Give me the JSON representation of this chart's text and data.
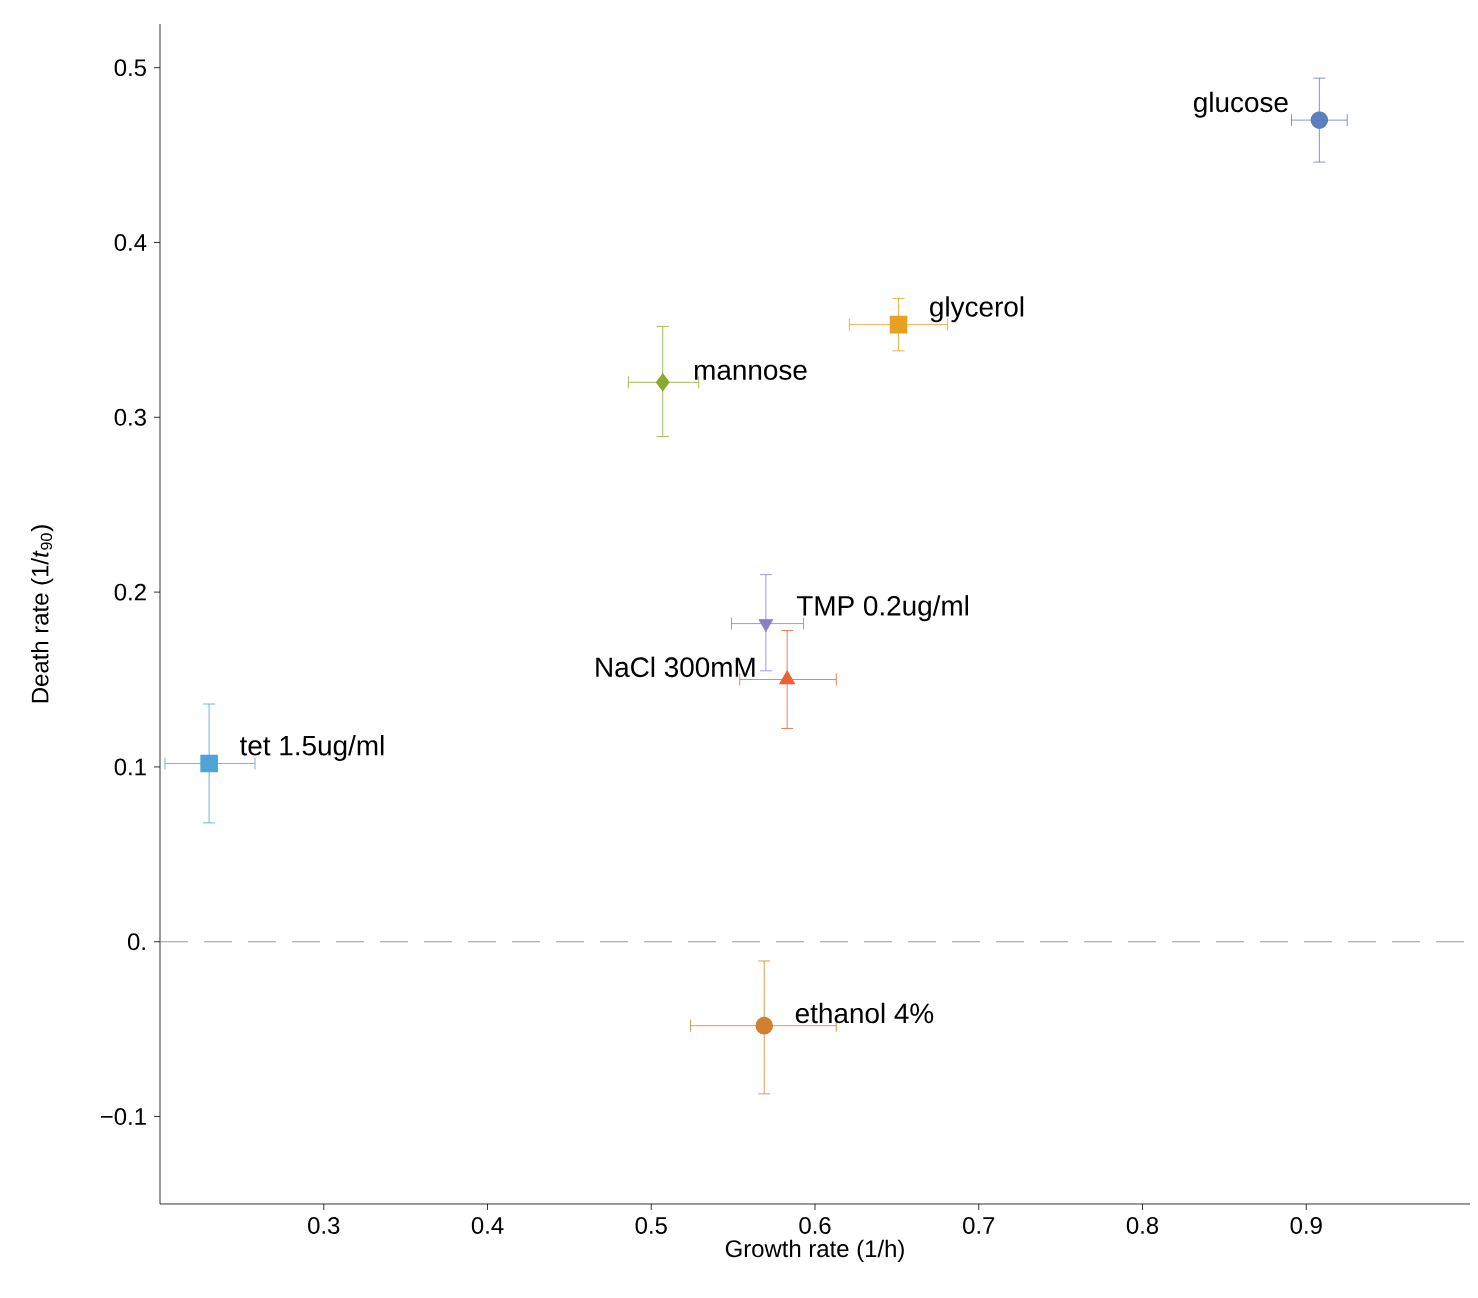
{
  "chart_data": {
    "type": "scatter",
    "xlabel": "Growth rate (1/h)",
    "ylabel": "Death rate (1/*t*$_{90}$)",
    "xlim": [
      0.2,
      1.0
    ],
    "ylim": [
      -0.15,
      0.525
    ],
    "xticks": [
      0.3,
      0.4,
      0.5,
      0.6,
      0.7,
      0.8,
      0.9
    ],
    "yticks": [
      {
        "value": -0.1,
        "label": "−0.1"
      },
      {
        "value": 0,
        "label": "0."
      },
      0.1,
      0.2,
      0.3,
      0.4,
      0.5
    ],
    "grid": false,
    "ref_lines": [
      {
        "axis": "y",
        "value": 0,
        "color": "#808080",
        "line_style": "dashed"
      }
    ],
    "series": [
      {
        "name": "glucose",
        "color": "#5b7fbf",
        "marker": "circle",
        "x": [
          0.908
        ],
        "values": [
          0.47
        ],
        "xerrors": [
          [
            0.891,
            0.925
          ]
        ],
        "errors": [
          [
            0.446,
            0.494
          ]
        ]
      },
      {
        "name": "glycerol",
        "color": "#e8a020",
        "marker": "square",
        "x": [
          0.651
        ],
        "values": [
          0.353
        ],
        "xerrors": [
          [
            0.621,
            0.681
          ]
        ],
        "errors": [
          [
            0.338,
            0.368
          ]
        ]
      },
      {
        "name": "mannose",
        "color": "#8aac2e",
        "marker": "diamond",
        "x": [
          0.507
        ],
        "values": [
          0.32
        ],
        "xerrors": [
          [
            0.486,
            0.529
          ]
        ],
        "errors": [
          [
            0.289,
            0.352
          ]
        ]
      },
      {
        "name": "TMP 0.2ug/ml",
        "color": "#8c7fc4",
        "marker": "triangle-down",
        "x": [
          0.57
        ],
        "values": [
          0.182
        ],
        "xerrors": [
          [
            0.549,
            0.593
          ]
        ],
        "errors": [
          [
            0.155,
            0.21
          ]
        ]
      },
      {
        "name": "NaCl 300mM",
        "color": "#f06030",
        "marker": "triangle",
        "x": [
          0.583
        ],
        "values": [
          0.15
        ],
        "xerrors": [
          [
            0.554,
            0.613
          ]
        ],
        "errors": [
          [
            0.122,
            0.178
          ]
        ]
      },
      {
        "name": "tet 1.5ug/ml",
        "color": "#4fa3d6",
        "marker": "square",
        "x": [
          0.23
        ],
        "values": [
          0.102
        ],
        "xerrors": [
          [
            0.203,
            0.258
          ]
        ],
        "errors": [
          [
            0.068,
            0.136
          ]
        ]
      },
      {
        "name": "ethanol 4%",
        "color": "#d08030",
        "marker": "circle",
        "x": [
          0.569
        ],
        "values": [
          -0.048
        ],
        "xerrors": [
          [
            0.524,
            0.613
          ]
        ],
        "errors": [
          [
            -0.087,
            -0.011
          ]
        ]
      }
    ]
  }
}
